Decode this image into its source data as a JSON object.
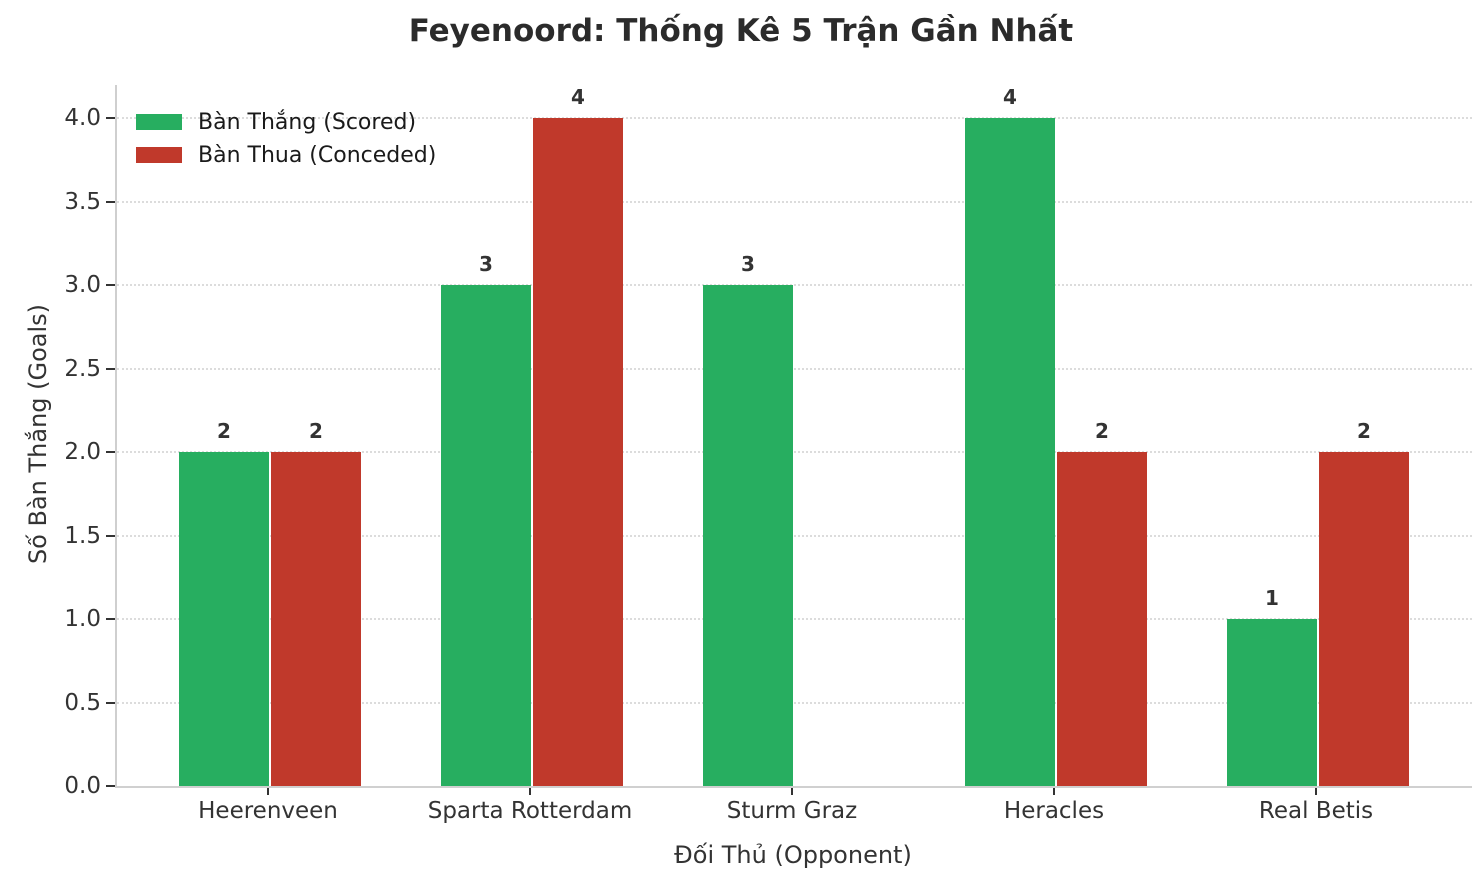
{
  "chart_data": {
    "type": "bar",
    "title": "Feyenoord: Thống Kê 5 Trận Gần Nhất",
    "xlabel": "Đối Thủ (Opponent)",
    "ylabel": "Số Bàn Thắng (Goals)",
    "categories": [
      "Heerenveen",
      "Sparta Rotterdam",
      "Sturm Graz",
      "Heracles",
      "Real Betis"
    ],
    "series": [
      {
        "name": "Bàn Thắng (Scored)",
        "color": "#27ae60",
        "values": [
          2,
          3,
          3,
          4,
          1
        ]
      },
      {
        "name": "Bàn Thua (Conceded)",
        "color": "#c0392b",
        "values": [
          2,
          4,
          0,
          2,
          2
        ]
      }
    ],
    "yticks": [
      "0.0",
      "0.5",
      "1.0",
      "1.5",
      "2.0",
      "2.5",
      "3.0",
      "3.5",
      "4.0"
    ],
    "ylim": [
      0,
      4.2
    ],
    "grid": "horizontal-dotted",
    "legend_position": "upper-left",
    "bar_value_labels": true
  }
}
